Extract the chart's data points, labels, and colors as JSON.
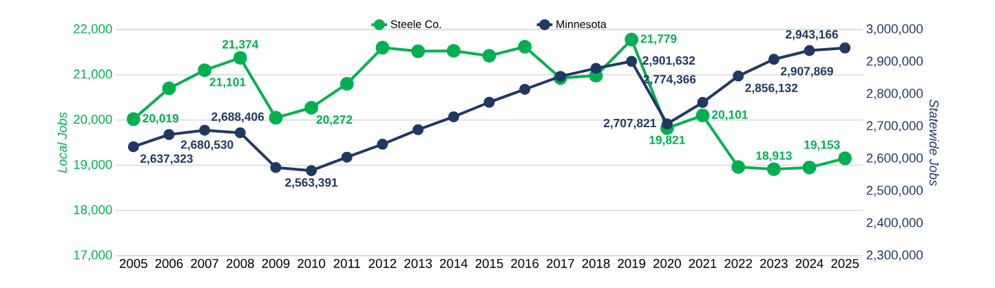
{
  "chart_data": {
    "type": "line",
    "categories": [
      "2005",
      "2006",
      "2007",
      "2008",
      "2009",
      "2010",
      "2011",
      "2012",
      "2013",
      "2014",
      "2015",
      "2016",
      "2017",
      "2018",
      "2019",
      "2020",
      "2021",
      "2022",
      "2023",
      "2024",
      "2025"
    ],
    "series": [
      {
        "name": "Steele Co.",
        "color": "#00b050",
        "values": [
          20019,
          20700,
          21101,
          21374,
          20050,
          20272,
          20800,
          21600,
          21520,
          21530,
          21420,
          21620,
          20930,
          20980,
          21779,
          19821,
          20101,
          18960,
          18913,
          18950,
          19153
        ],
        "value_labels": [
          "20,019",
          null,
          "21,101",
          "21,374",
          null,
          "20,272",
          null,
          null,
          null,
          null,
          null,
          null,
          null,
          null,
          "21,779",
          "19,821",
          "20,101",
          null,
          "18,913",
          null,
          "19,153"
        ]
      },
      {
        "name": "Minnesota",
        "color": "#203864",
        "axis": "y2",
        "values": [
          2637323,
          2675000,
          2688406,
          2680530,
          2573000,
          2563391,
          2605000,
          2645000,
          2690000,
          2730000,
          2775000,
          2815000,
          2855000,
          2880000,
          2901632,
          2707821,
          2774366,
          2856132,
          2907869,
          2935000,
          2943166
        ],
        "value_labels": [
          "2,637,323",
          null,
          "2,688,406",
          "2,680,530",
          null,
          "2,563,391",
          null,
          null,
          null,
          null,
          null,
          null,
          null,
          null,
          "2,901,632",
          "2,707,821",
          "2,774,366",
          "2,856,132",
          "2,907,869",
          null,
          "2,943,166"
        ]
      }
    ],
    "ylabel": "Local Jobs",
    "y2label": "Statewide Jobs",
    "ylim": [
      17000,
      22000
    ],
    "yticks": [
      {
        "value": 17000,
        "label": "17,000"
      },
      {
        "value": 18000,
        "label": "18,000"
      },
      {
        "value": 19000,
        "label": "19,000"
      },
      {
        "value": 20000,
        "label": "20,000"
      },
      {
        "value": 21000,
        "label": "21,000"
      },
      {
        "value": 22000,
        "label": "22,000"
      }
    ],
    "y2lim": [
      2300000,
      3000000
    ],
    "y2ticks": [
      {
        "value": 2300000,
        "label": "2,300,000"
      },
      {
        "value": 2400000,
        "label": "2,400,000"
      },
      {
        "value": 2500000,
        "label": "2,500,000"
      },
      {
        "value": 2600000,
        "label": "2,600,000"
      },
      {
        "value": 2700000,
        "label": "2,700,000"
      },
      {
        "value": 2800000,
        "label": "2,800,000"
      },
      {
        "value": 2900000,
        "label": "2,900,000"
      },
      {
        "value": 3000000,
        "label": "3,000,000"
      }
    ],
    "grid": "y",
    "legend": "top",
    "marker": "circle",
    "line_style": "solid"
  }
}
